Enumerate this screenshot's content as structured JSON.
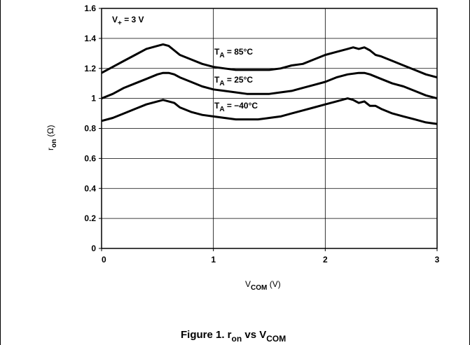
{
  "chart_data": {
    "type": "line",
    "caption": {
      "main": "Figure 1. r",
      "sub1": "on",
      "mid": " vs V",
      "sub2": "COM"
    },
    "supply_label": {
      "main": "V",
      "sub": "+",
      "rest": " = 3 V"
    },
    "xlabel": {
      "main": "V",
      "sub": "COM",
      "rest": " (V)"
    },
    "ylabel": {
      "main": "r",
      "sub": "on",
      "rest": " (Ω)"
    },
    "xlim": [
      0,
      3
    ],
    "ylim": [
      0,
      1.6
    ],
    "xticks": [
      0,
      1,
      2,
      3
    ],
    "xtick_labels": [
      "0",
      "1",
      "2",
      "3"
    ],
    "yticks": [
      0,
      0.2,
      0.4,
      0.6,
      0.8,
      1,
      1.2,
      1.4,
      1.6
    ],
    "ytick_labels": [
      "0",
      "0.2",
      "0.4",
      "0.6",
      "0.8",
      "1",
      "1.2",
      "1.4",
      "1.6"
    ],
    "grid": true,
    "series": [
      {
        "name": "T_A = 85°C",
        "label": {
          "main": "T",
          "sub": "A",
          "rest": " = 85°C"
        },
        "x": [
          0,
          0.1,
          0.2,
          0.3,
          0.4,
          0.5,
          0.55,
          0.6,
          0.65,
          0.7,
          0.8,
          0.9,
          1.0,
          1.1,
          1.2,
          1.3,
          1.4,
          1.5,
          1.6,
          1.7,
          1.8,
          1.9,
          2.0,
          2.1,
          2.2,
          2.25,
          2.3,
          2.35,
          2.4,
          2.45,
          2.5,
          2.6,
          2.7,
          2.8,
          2.9,
          3.0
        ],
        "y": [
          1.17,
          1.21,
          1.25,
          1.29,
          1.33,
          1.35,
          1.36,
          1.35,
          1.32,
          1.29,
          1.26,
          1.23,
          1.21,
          1.2,
          1.19,
          1.19,
          1.19,
          1.19,
          1.2,
          1.22,
          1.23,
          1.26,
          1.29,
          1.31,
          1.33,
          1.34,
          1.33,
          1.34,
          1.32,
          1.29,
          1.28,
          1.25,
          1.22,
          1.19,
          1.16,
          1.14
        ]
      },
      {
        "name": "T_A = 25°C",
        "label": {
          "main": "T",
          "sub": "A",
          "rest": " = 25°C"
        },
        "x": [
          0,
          0.1,
          0.2,
          0.3,
          0.4,
          0.5,
          0.55,
          0.6,
          0.65,
          0.7,
          0.8,
          0.9,
          1.0,
          1.1,
          1.2,
          1.3,
          1.4,
          1.5,
          1.6,
          1.7,
          1.8,
          1.9,
          2.0,
          2.1,
          2.2,
          2.3,
          2.35,
          2.4,
          2.5,
          2.6,
          2.7,
          2.8,
          2.9,
          3.0
        ],
        "y": [
          1.0,
          1.03,
          1.07,
          1.1,
          1.13,
          1.16,
          1.17,
          1.17,
          1.16,
          1.14,
          1.11,
          1.08,
          1.06,
          1.05,
          1.04,
          1.03,
          1.03,
          1.03,
          1.04,
          1.05,
          1.07,
          1.09,
          1.11,
          1.14,
          1.16,
          1.17,
          1.17,
          1.16,
          1.13,
          1.1,
          1.08,
          1.05,
          1.02,
          1.0
        ]
      },
      {
        "name": "T_A = −40°C",
        "label": {
          "main": "T",
          "sub": "A",
          "rest": " = −40°C"
        },
        "x": [
          0,
          0.1,
          0.2,
          0.3,
          0.4,
          0.5,
          0.55,
          0.6,
          0.65,
          0.7,
          0.8,
          0.9,
          1.0,
          1.1,
          1.2,
          1.3,
          1.4,
          1.5,
          1.6,
          1.7,
          1.8,
          1.9,
          2.0,
          2.1,
          2.2,
          2.25,
          2.3,
          2.35,
          2.4,
          2.45,
          2.5,
          2.6,
          2.7,
          2.8,
          2.9,
          3.0
        ],
        "y": [
          0.85,
          0.87,
          0.9,
          0.93,
          0.96,
          0.98,
          0.99,
          0.98,
          0.97,
          0.94,
          0.91,
          0.89,
          0.88,
          0.87,
          0.86,
          0.86,
          0.86,
          0.87,
          0.88,
          0.9,
          0.92,
          0.94,
          0.96,
          0.98,
          1.0,
          0.99,
          0.97,
          0.98,
          0.95,
          0.95,
          0.93,
          0.9,
          0.88,
          0.86,
          0.84,
          0.83
        ]
      }
    ]
  }
}
